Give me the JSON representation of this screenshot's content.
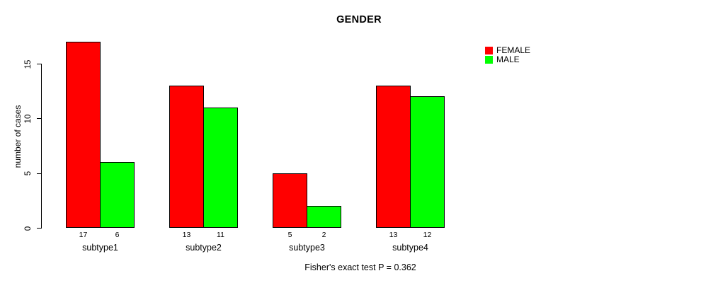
{
  "chart_data": {
    "type": "bar",
    "title": "GENDER",
    "categories": [
      "subtype1",
      "subtype2",
      "subtype3",
      "subtype4"
    ],
    "series": [
      {
        "name": "FEMALE",
        "color": "#FF0000",
        "values": [
          17,
          13,
          5,
          13
        ]
      },
      {
        "name": "MALE",
        "color": "#00FF00",
        "values": [
          6,
          11,
          2,
          12
        ]
      }
    ],
    "xlabel": "",
    "ylabel": "number of cases",
    "yticks": [
      0,
      5,
      10,
      15
    ],
    "ylim": [
      0,
      17
    ],
    "bar_value_labels": [
      [
        "17",
        "6"
      ],
      [
        "13",
        "11"
      ],
      [
        "5",
        "2"
      ],
      [
        "13",
        "12"
      ]
    ],
    "legend_position": "top-right",
    "grid": false,
    "subtitle": "Fisher's exact test P = 0.362",
    "axis_color": "#000000",
    "bar_border_color": "#000000",
    "background_color": "#FFFFFF"
  }
}
